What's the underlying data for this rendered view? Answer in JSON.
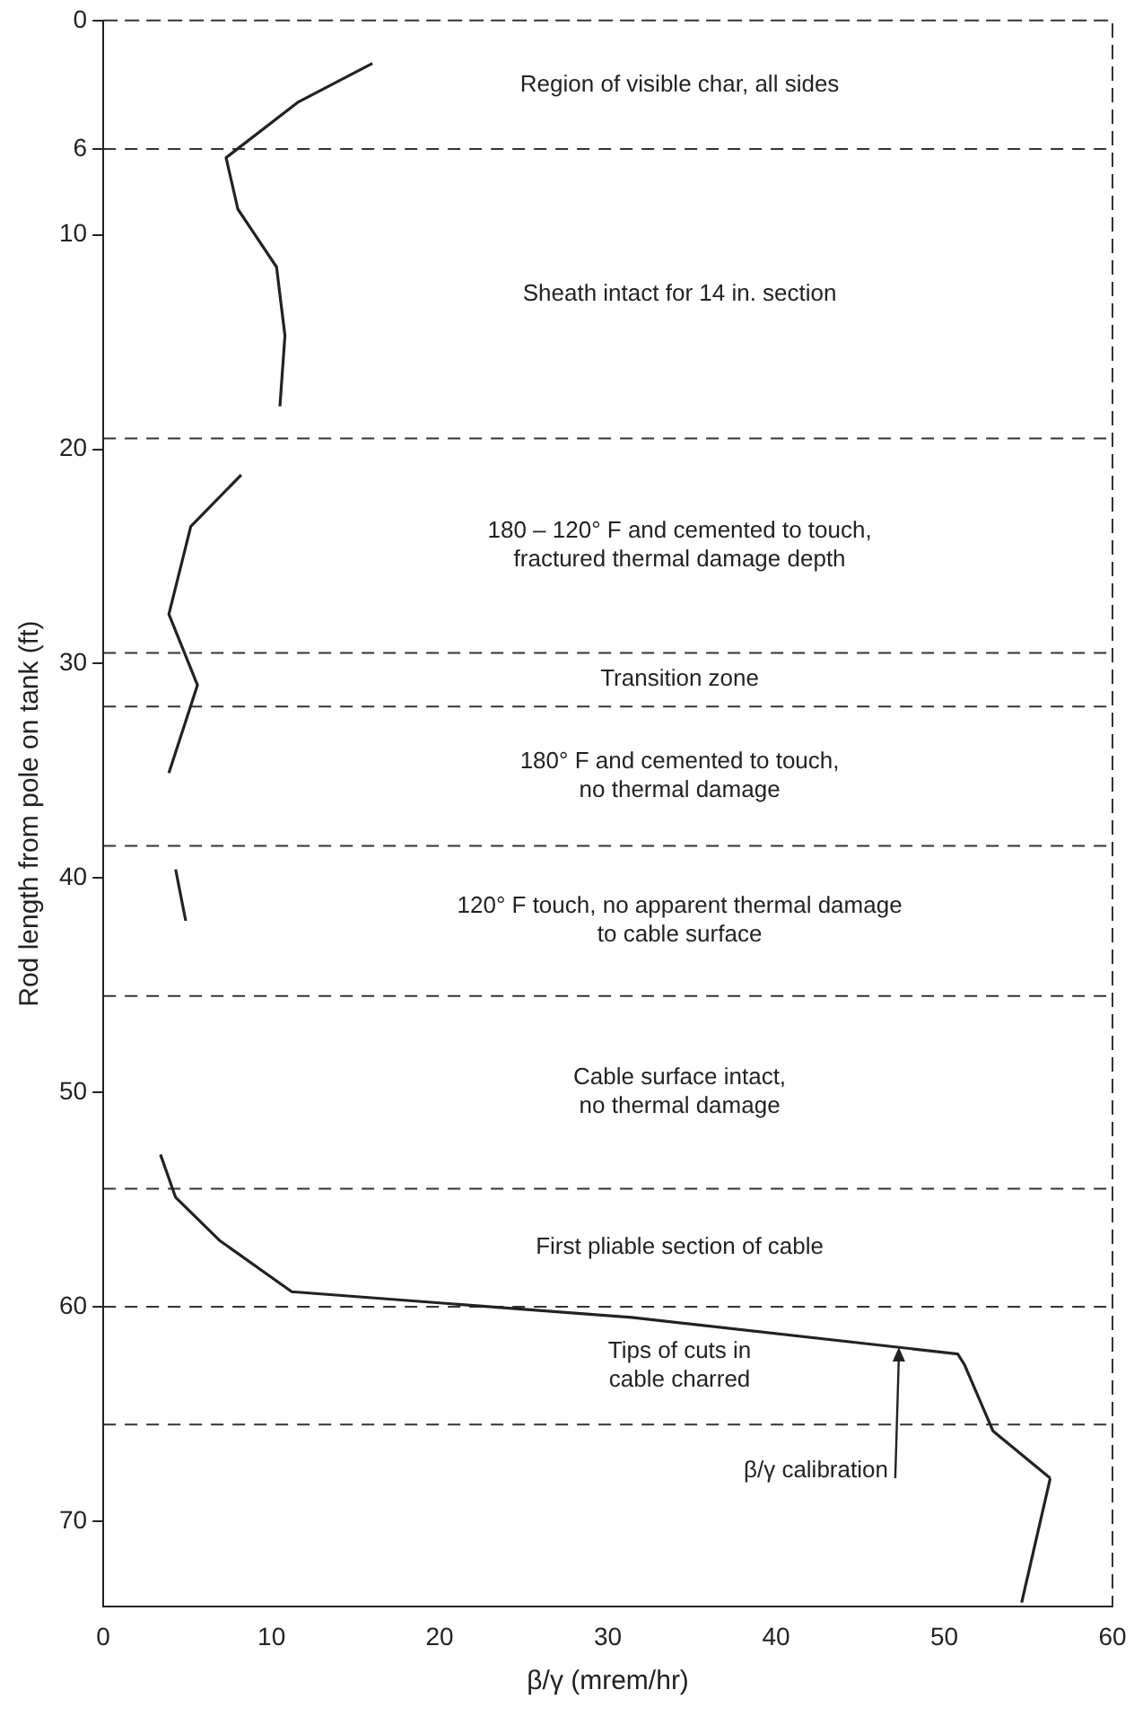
{
  "chart_data": {
    "type": "line",
    "xlabel": "β/γ (mrem/hr)",
    "ylabel": "Rod length from pole on tank (ft)",
    "xlim": [
      0,
      60
    ],
    "xticks": [
      0,
      10,
      20,
      30,
      40,
      50,
      60
    ],
    "ylim": [
      74,
      0
    ],
    "yticks": [
      0,
      6,
      10,
      20,
      30,
      40,
      50,
      60,
      70
    ],
    "grid": false,
    "legend": false,
    "marker": "none",
    "line_style": "solid",
    "series": [
      {
        "color": "#222222",
        "x": [
          16,
          11.6,
          7.3,
          8,
          10.3,
          10.8,
          10.5,
          null,
          8.2,
          5.2,
          3.9,
          5.6,
          3.9,
          null,
          4.3,
          4.9,
          null,
          3.4,
          4.3,
          6.9,
          11.2,
          31.4,
          50.8,
          51.2,
          52.9,
          56.3,
          null,
          56.3,
          54.6
        ],
        "values": [
          2,
          3.8,
          6.4,
          8.8,
          11.5,
          14.7,
          18,
          null,
          21.2,
          23.6,
          27.7,
          31,
          35.1,
          null,
          39.6,
          42,
          null,
          52.9,
          54.9,
          56.9,
          59.3,
          60.5,
          62.2,
          62.7,
          65.8,
          68,
          null,
          68,
          73.8
        ]
      }
    ],
    "ref_lines": [
      {
        "axis": "y",
        "value": 6,
        "line_style": "dashed"
      },
      {
        "axis": "y",
        "value": 19.5,
        "line_style": "dashed"
      },
      {
        "axis": "y",
        "value": 29.5,
        "line_style": "dashed"
      },
      {
        "axis": "y",
        "value": 32,
        "line_style": "dashed"
      },
      {
        "axis": "y",
        "value": 38.5,
        "line_style": "dashed"
      },
      {
        "axis": "y",
        "value": 45.5,
        "line_style": "dashed"
      },
      {
        "axis": "y",
        "value": 54.5,
        "line_style": "dashed"
      },
      {
        "axis": "y",
        "value": 60,
        "line_style": "dashed"
      },
      {
        "axis": "y",
        "value": 65.5,
        "line_style": "dashed"
      }
    ],
    "annotations": [
      "Region of visible char, all sides",
      "Sheath intact for 14 in. section",
      "180 – 120° F and cemented to touch,\nfractured thermal damage depth",
      "Transition zone",
      "180° F and cemented to touch,\nno thermal damage",
      "120° F touch, no apparent thermal damage\nto cable surface",
      "Cable surface intact,\nno thermal damage",
      "First pliable section of cable",
      "Tips of cuts in\ncable charred",
      {
        "text": "β/γ calibration",
        "x": 47.3,
        "y": 61.8
      }
    ]
  }
}
